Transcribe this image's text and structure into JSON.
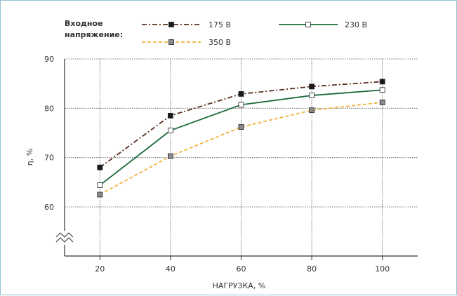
{
  "chart_data": {
    "type": "line",
    "xlabel": "НАГРУЗКА, %",
    "ylabel": "η, %",
    "x": [
      20,
      40,
      60,
      80,
      100
    ],
    "xlim": [
      10,
      110
    ],
    "ylim": [
      60,
      90
    ],
    "yticks": [
      60,
      70,
      80,
      90
    ],
    "axis_break": true,
    "grid": true,
    "legend": {
      "title_lines": [
        "Входное",
        "напряжение:"
      ],
      "placement": "top"
    },
    "series": [
      {
        "name": "175 В",
        "values": [
          68.0,
          78.5,
          82.9,
          84.4,
          85.4
        ],
        "color": "#5a2d1e",
        "dash": "dash-dot",
        "marker": "filled-square",
        "marker_color": "#1a1a1a"
      },
      {
        "name": "230 В",
        "values": [
          64.4,
          75.5,
          80.7,
          82.6,
          83.7
        ],
        "color": "#1c6b3c",
        "dash": "solid",
        "marker": "open-square",
        "marker_color": "#ffffff"
      },
      {
        "name": "350 В",
        "values": [
          62.5,
          70.3,
          76.2,
          79.6,
          81.2
        ],
        "color": "#f2b33d",
        "dash": "dashed",
        "marker": "grey-square",
        "marker_color": "#8a8a8a"
      }
    ]
  }
}
